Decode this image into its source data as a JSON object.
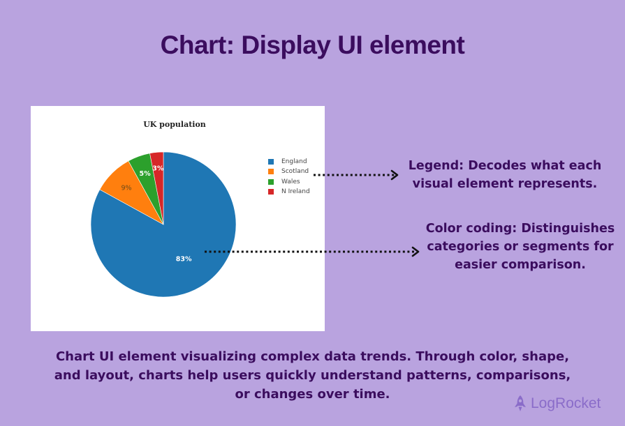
{
  "page_title": "Chart:  Display UI element",
  "chart_data": {
    "type": "pie",
    "title": "UK population",
    "categories": [
      "England",
      "Scotland",
      "Wales",
      "N Ireland"
    ],
    "values": [
      83,
      9,
      5,
      3
    ],
    "value_labels": [
      "83%",
      "9%",
      "5%",
      "3%"
    ],
    "colors": [
      "#1f77b4",
      "#ff7f0e",
      "#2ca02c",
      "#d62728"
    ],
    "legend_position": "right"
  },
  "annotations": {
    "legend": "Legend: Decodes what each visual element represents.",
    "color_coding": "Color coding: Distinguishes categories or segments for easier comparison."
  },
  "caption": "Chart UI element visualizing complex data trends. Through color, shape, and layout, charts help users quickly understand patterns, comparisons, or changes over time.",
  "brand": {
    "name": "LogRocket",
    "icon": "rocket-icon"
  }
}
